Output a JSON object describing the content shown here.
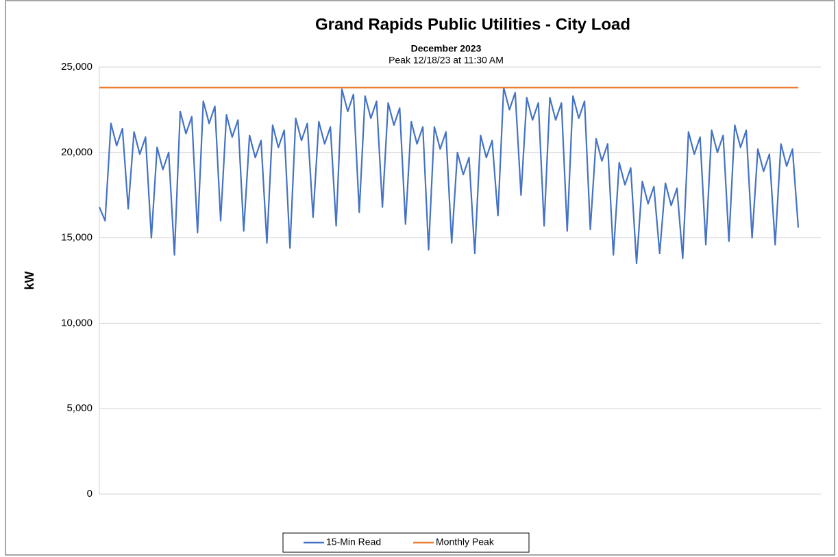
{
  "chart_data": {
    "type": "line",
    "title": "Grand Rapids Public Utilities  -  City Load",
    "subtitle": "December 2023",
    "annotation": "Peak 12/18/23 at 11:30 AM",
    "ylabel": "kW",
    "ylim": [
      0,
      25000
    ],
    "yticks": [
      0,
      {
        "value": 5000,
        "label": "5,000"
      },
      {
        "value": 10000,
        "label": "10,000"
      },
      {
        "value": 15000,
        "label": "15,000"
      },
      {
        "value": 20000,
        "label": "20,000"
      },
      {
        "value": 25000,
        "label": "25,000"
      }
    ],
    "grid": true,
    "legend": "bottom",
    "series": [
      {
        "name": "15-Min Read",
        "color": "#4472c4",
        "values": [
          16800,
          16000,
          21700,
          20400,
          21400,
          16700,
          21200,
          19900,
          20900,
          15000,
          20300,
          19000,
          20000,
          14000,
          22400,
          21100,
          22100,
          15300,
          23000,
          21700,
          22700,
          16000,
          22200,
          20900,
          21900,
          15400,
          21000,
          19700,
          20700,
          14700,
          21600,
          20300,
          21300,
          14400,
          22000,
          20700,
          21700,
          16200,
          21800,
          20500,
          21500,
          15700,
          23700,
          22400,
          23400,
          16500,
          23300,
          22000,
          23000,
          16800,
          22900,
          21600,
          22600,
          15800,
          21800,
          20500,
          21500,
          14300,
          21500,
          20200,
          21200,
          14700,
          20000,
          18700,
          19700,
          14100,
          21000,
          19700,
          20700,
          16300,
          23800,
          22500,
          23500,
          17500,
          23200,
          21900,
          22900,
          15700,
          23200,
          21900,
          22900,
          15400,
          23300,
          22000,
          23000,
          15500,
          20800,
          19500,
          20500,
          14000,
          19400,
          18100,
          19100,
          13500,
          18300,
          17000,
          18000,
          14100,
          18200,
          16900,
          17900,
          13800,
          21200,
          19900,
          20900,
          14600,
          21300,
          20000,
          21000,
          14800,
          21600,
          20300,
          21300,
          15000,
          20200,
          18900,
          19900,
          14600,
          20500,
          19200,
          20200,
          15600
        ]
      },
      {
        "name": "Monthly Peak",
        "color": "#ed7d31",
        "value": 23800
      }
    ]
  }
}
